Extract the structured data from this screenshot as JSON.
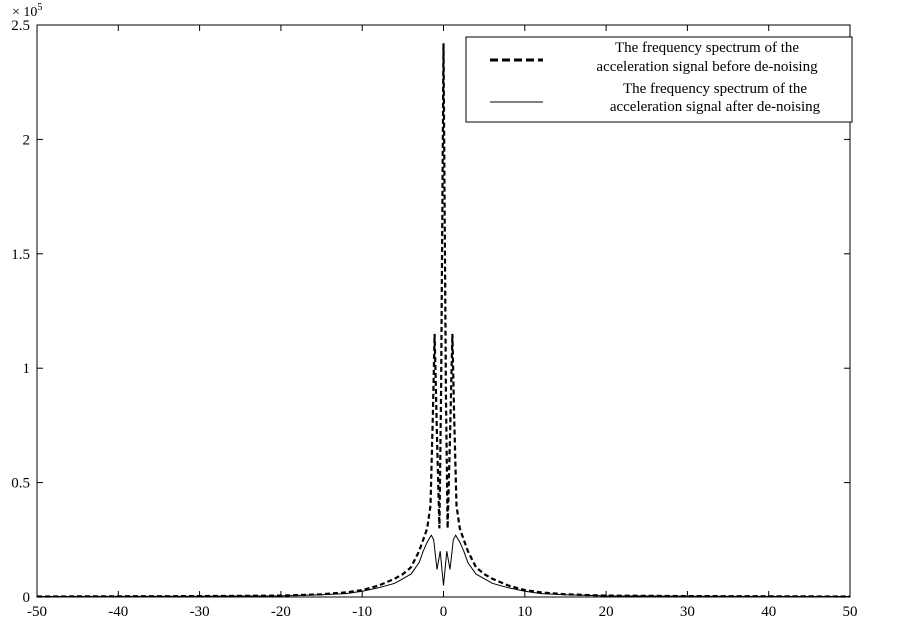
{
  "chart_data": {
    "type": "line",
    "title": "",
    "xlabel": "",
    "ylabel": "",
    "y_multiplier_label": "× 10",
    "y_multiplier_exponent": "5",
    "xlim": [
      -50,
      50
    ],
    "ylim": [
      0,
      2.5
    ],
    "x_ticks": [
      -50,
      -40,
      -30,
      -20,
      -10,
      0,
      10,
      20,
      30,
      40,
      50
    ],
    "y_ticks": [
      0,
      0.5,
      1,
      1.5,
      2,
      2.5
    ],
    "x_tick_labels": [
      "-50",
      "-40",
      "-30",
      "-20",
      "-10",
      "0",
      "10",
      "20",
      "30",
      "40",
      "50"
    ],
    "y_tick_labels": [
      "0",
      "0.5",
      "1",
      "1.5",
      "2",
      "2.5"
    ],
    "grid": false,
    "legend_position": "top-right",
    "series": [
      {
        "name": "The frequency spectrum of the acceleration signal before de-noising",
        "style": "dashed",
        "color": "#000000",
        "x": [
          -50,
          -30,
          -20,
          -15,
          -12,
          -10,
          -8,
          -6,
          -5,
          -4,
          -3,
          -2.5,
          -2,
          -1.6,
          -1.3,
          -1.1,
          -0.8,
          -0.5,
          -0.3,
          0,
          0.3,
          0.5,
          0.8,
          1.1,
          1.3,
          1.6,
          2,
          2.5,
          3,
          4,
          5,
          6,
          8,
          10,
          12,
          15,
          20,
          30,
          50
        ],
        "y": [
          0.002,
          0.004,
          0.006,
          0.012,
          0.02,
          0.03,
          0.05,
          0.08,
          0.1,
          0.13,
          0.2,
          0.25,
          0.3,
          0.4,
          0.8,
          1.15,
          0.7,
          0.3,
          0.9,
          2.42,
          0.9,
          0.3,
          0.7,
          1.15,
          0.8,
          0.4,
          0.3,
          0.25,
          0.2,
          0.13,
          0.1,
          0.08,
          0.05,
          0.03,
          0.02,
          0.012,
          0.006,
          0.004,
          0.002
        ]
      },
      {
        "name": "The frequency spectrum of the acceleration signal after de-noising",
        "style": "solid",
        "color": "#000000",
        "x": [
          -50,
          -30,
          -20,
          -15,
          -12,
          -10,
          -8,
          -6,
          -5,
          -4,
          -3,
          -2.5,
          -2,
          -1.5,
          -1.2,
          -0.8,
          -0.4,
          0,
          0.4,
          0.8,
          1.2,
          1.5,
          2,
          2.5,
          3,
          4,
          5,
          6,
          8,
          10,
          12,
          15,
          20,
          30,
          50
        ],
        "y": [
          0.002,
          0.003,
          0.005,
          0.01,
          0.015,
          0.025,
          0.04,
          0.06,
          0.08,
          0.1,
          0.15,
          0.2,
          0.24,
          0.27,
          0.25,
          0.12,
          0.2,
          0.05,
          0.2,
          0.12,
          0.25,
          0.27,
          0.24,
          0.2,
          0.15,
          0.1,
          0.08,
          0.06,
          0.04,
          0.025,
          0.015,
          0.01,
          0.005,
          0.003,
          0.002
        ]
      }
    ]
  },
  "legend": {
    "series1_line1": "The frequency spectrum of the",
    "series1_line2": "acceleration signal before de-noising",
    "series2_line1": "The frequency spectrum of the",
    "series2_line2": "acceleration signal after de-noising"
  }
}
